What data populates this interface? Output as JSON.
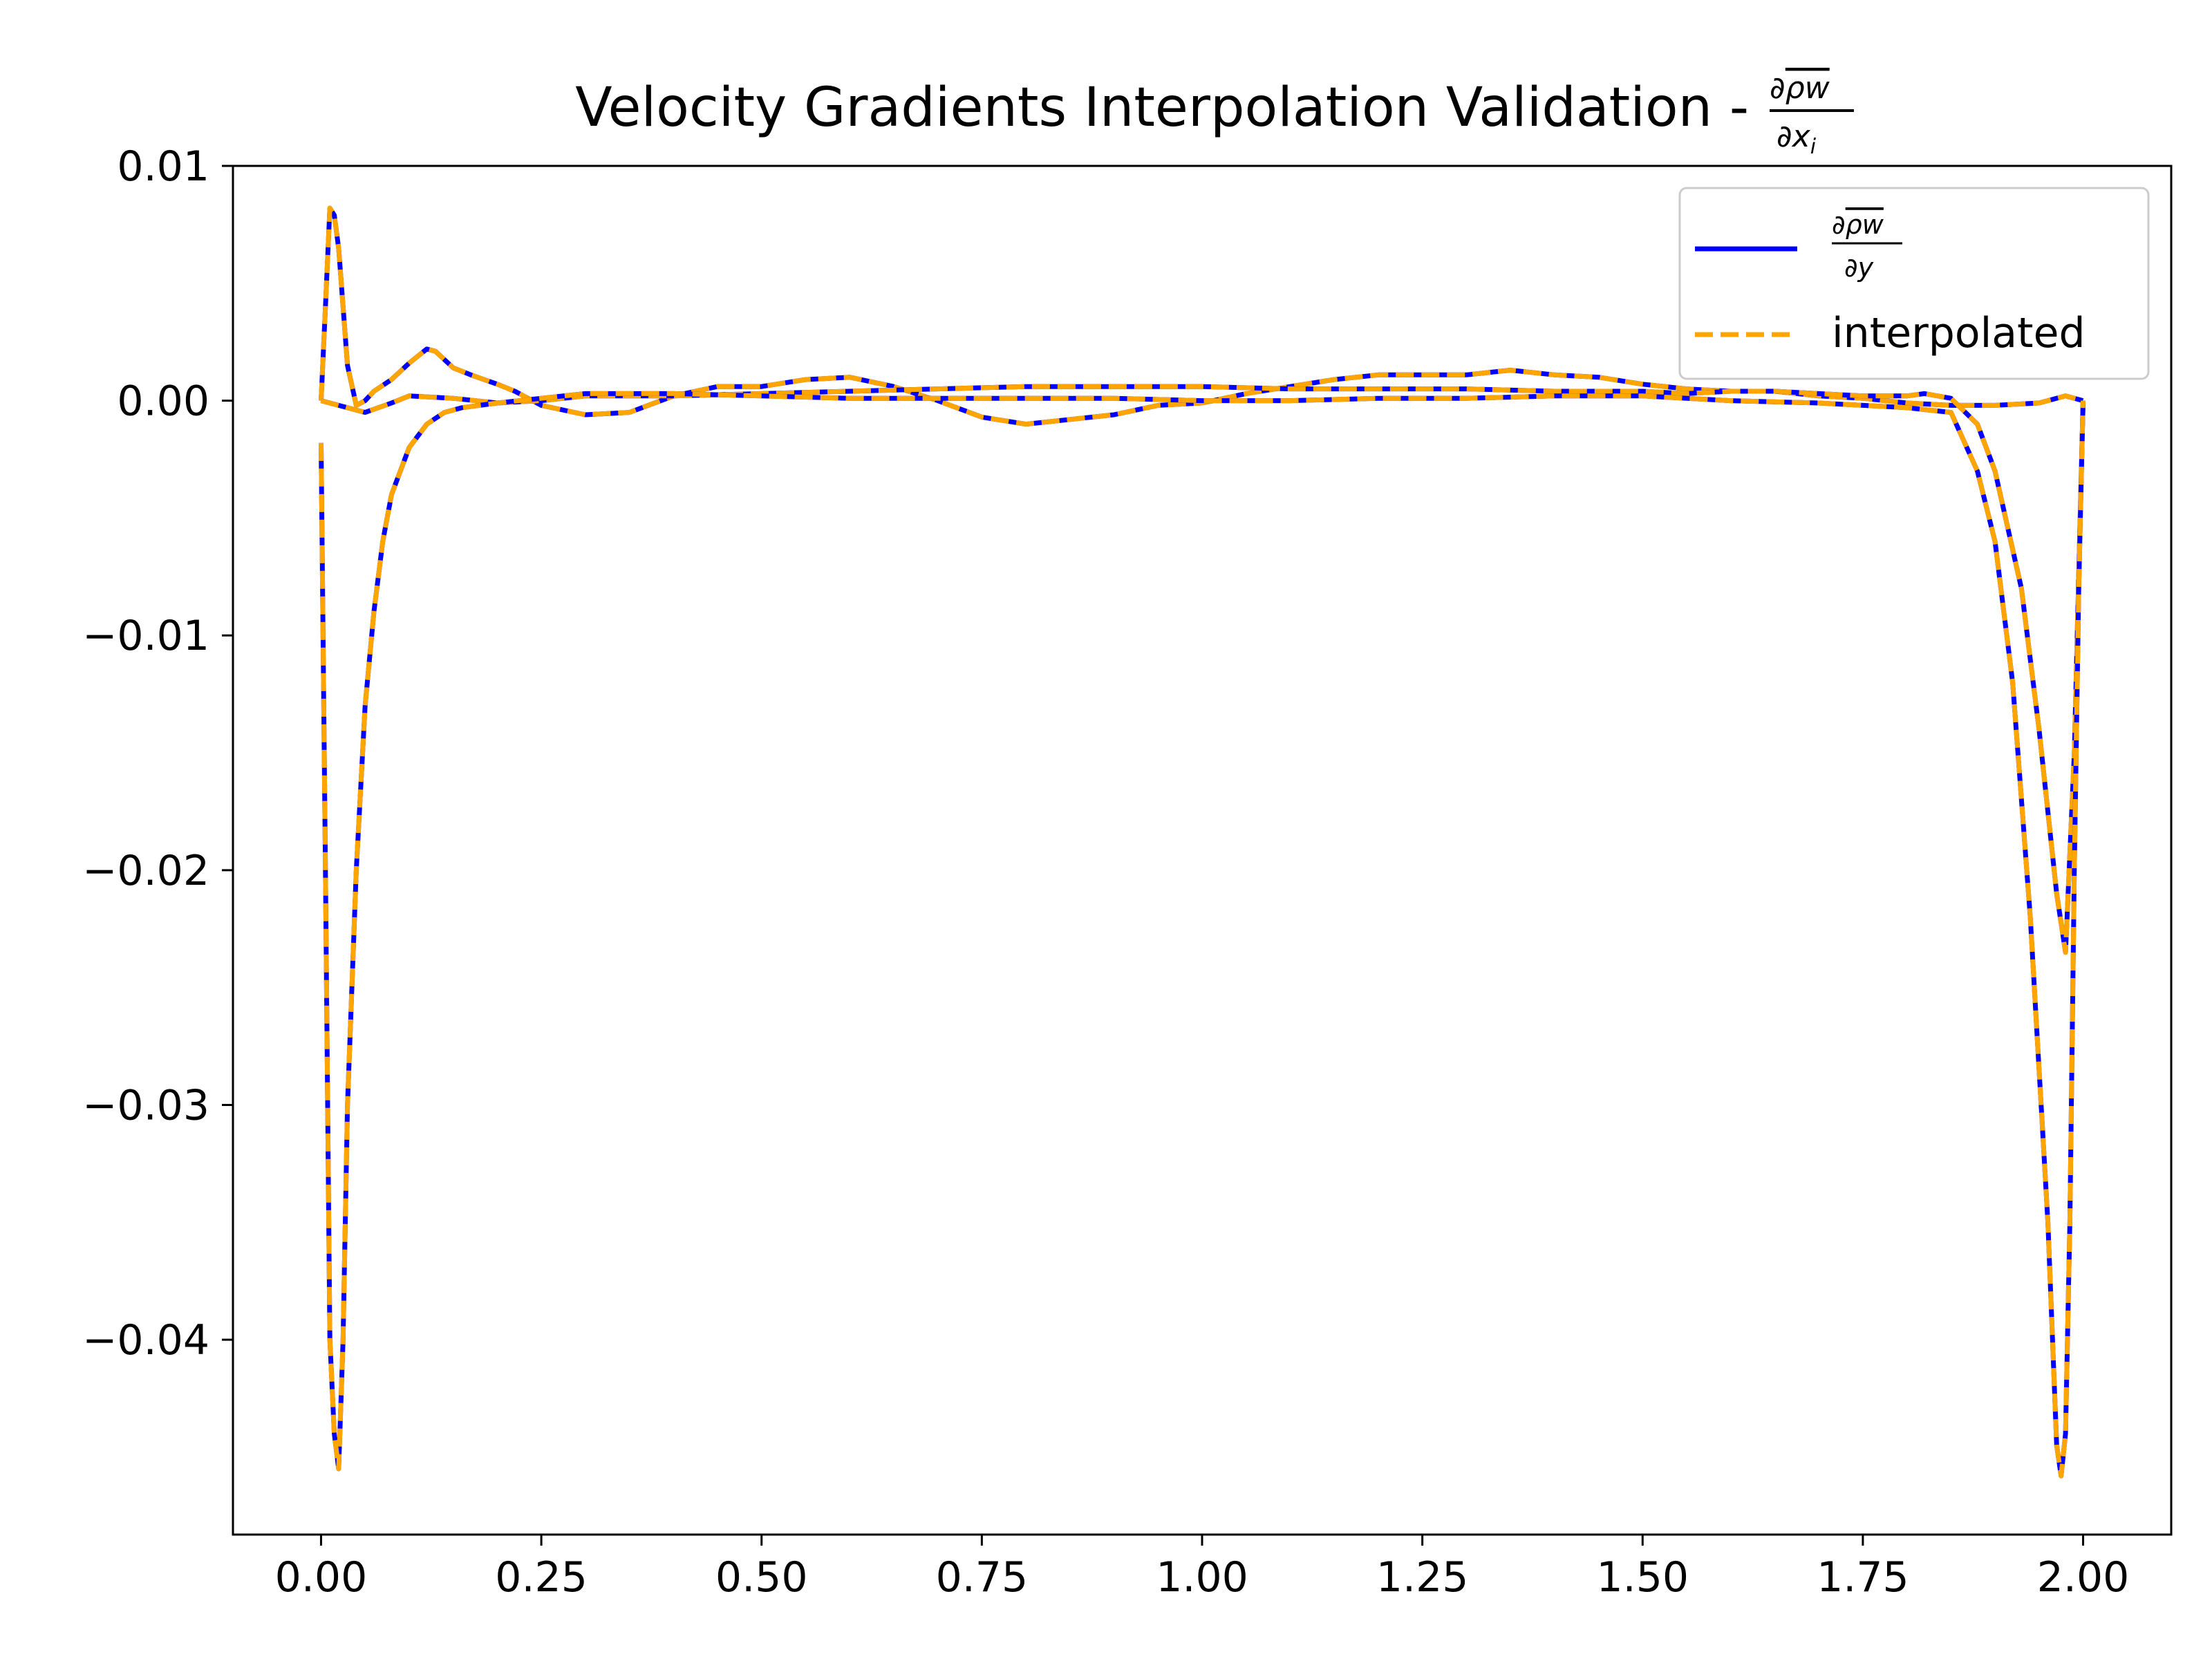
{
  "chart_data": {
    "type": "line",
    "title": {
      "text": "Velocity Gradients Interpolation Validation - ",
      "frac_num_prefix": "∂",
      "frac_num_over": "ρw",
      "frac_den": "∂x",
      "frac_den_sub": "i"
    },
    "xlabel": "",
    "ylabel": "",
    "xlim": [
      -0.1,
      2.1
    ],
    "ylim": [
      -0.0483,
      0.01
    ],
    "xticks": [
      "0.00",
      "0.25",
      "0.50",
      "0.75",
      "1.00",
      "1.25",
      "1.50",
      "1.75",
      "2.00"
    ],
    "yticks": [
      "0.01",
      "0.00",
      "−0.01",
      "−0.02",
      "−0.03",
      "−0.04"
    ],
    "grid": false,
    "legend_position": "top-right",
    "legend": [
      {
        "num_prefix": "∂",
        "num_over": "ρw",
        "den": "∂y",
        "style": "solid",
        "color": "#0000ff"
      },
      {
        "label": "interpolated",
        "style": "dashed",
        "color": "#ffa500"
      }
    ],
    "colors": {
      "truth": "#0000ff",
      "interpolated": "#ffa500"
    },
    "series": [
      {
        "x": [
          0.0,
          0.005,
          0.01,
          0.015,
          0.02,
          0.025,
          0.03,
          0.04,
          0.05,
          0.06,
          0.08,
          0.1,
          0.12,
          0.13,
          0.15,
          0.17,
          0.2,
          0.22,
          0.25,
          0.3,
          0.35,
          0.4,
          0.45,
          0.5,
          0.55,
          0.6,
          0.65,
          0.7,
          0.75,
          0.8,
          0.85,
          0.9,
          0.95,
          1.0,
          1.05,
          1.1,
          1.15,
          1.2,
          1.25,
          1.3,
          1.35,
          1.4,
          1.45,
          1.5,
          1.55,
          1.6,
          1.65,
          1.7,
          1.75,
          1.8,
          1.85,
          1.9,
          1.95,
          1.98,
          2.0
        ],
        "y": [
          0.0,
          0.004,
          0.0082,
          0.0079,
          0.0065,
          0.004,
          0.0015,
          -0.0002,
          0.0,
          0.0004,
          0.0009,
          0.0016,
          0.0022,
          0.0021,
          0.0014,
          0.0011,
          0.0007,
          0.0004,
          -0.0002,
          -0.0006,
          -0.0005,
          0.0002,
          0.0006,
          0.0006,
          0.0009,
          0.001,
          0.0006,
          0.0,
          -0.0007,
          -0.001,
          -0.0008,
          -0.0006,
          -0.0002,
          -0.0001,
          0.0003,
          0.0006,
          0.0009,
          0.0011,
          0.0011,
          0.0011,
          0.0013,
          0.0011,
          0.001,
          0.0007,
          0.0005,
          0.0004,
          0.0004,
          0.0002,
          0.0001,
          -0.0001,
          -0.0002,
          -0.0002,
          -0.0001,
          0.0002,
          0.0
        ]
      },
      {
        "x": [
          0.0,
          0.02,
          0.05,
          0.08,
          0.1,
          0.15,
          0.2,
          0.25,
          0.3,
          0.4,
          0.5,
          0.6,
          0.7,
          0.8,
          0.9,
          1.0,
          1.1,
          1.2,
          1.3,
          1.4,
          1.5,
          1.55,
          1.6,
          1.65,
          1.7,
          1.75,
          1.8,
          1.82,
          1.85,
          1.88,
          1.9,
          1.93,
          1.95,
          1.97,
          1.98,
          1.99,
          2.0
        ],
        "y": [
          0.0,
          -0.0002,
          -0.0005,
          -0.0001,
          0.0002,
          0.0001,
          -0.0001,
          0.0,
          0.0002,
          0.0002,
          0.0003,
          0.0004,
          0.0005,
          0.0006,
          0.0006,
          0.0006,
          0.0005,
          0.0005,
          0.0005,
          0.0004,
          0.0004,
          0.0003,
          0.0004,
          0.0004,
          0.0003,
          0.0002,
          0.0002,
          0.0003,
          0.0001,
          -0.001,
          -0.003,
          -0.008,
          -0.014,
          -0.021,
          -0.0235,
          -0.015,
          0.0
        ]
      },
      {
        "x": [
          0.0,
          0.005,
          0.01,
          0.015,
          0.02,
          0.025,
          0.03,
          0.04,
          0.05,
          0.06,
          0.07,
          0.08,
          0.1,
          0.12,
          0.14,
          0.16,
          0.18,
          0.2,
          0.25,
          0.3,
          0.4,
          0.5,
          0.6,
          0.7,
          0.8,
          0.9,
          1.0,
          1.1,
          1.2,
          1.3,
          1.4,
          1.5,
          1.6,
          1.7,
          1.75,
          1.8,
          1.85,
          1.88,
          1.9,
          1.92,
          1.94,
          1.96,
          1.97,
          1.975,
          1.98,
          1.985,
          1.99,
          1.995,
          2.0
        ],
        "y": [
          -0.0018,
          -0.02,
          -0.04,
          -0.044,
          -0.0455,
          -0.04,
          -0.03,
          -0.02,
          -0.013,
          -0.009,
          -0.006,
          -0.004,
          -0.002,
          -0.001,
          -0.0005,
          -0.0003,
          -0.0002,
          -0.0001,
          0.0001,
          0.0003,
          0.0003,
          0.0002,
          0.0001,
          0.0001,
          0.0001,
          0.0001,
          0.0,
          0.0,
          0.0001,
          0.0001,
          0.0002,
          0.0002,
          0.0,
          -0.0001,
          -0.0002,
          -0.0003,
          -0.0005,
          -0.003,
          -0.006,
          -0.012,
          -0.022,
          -0.035,
          -0.0445,
          -0.0458,
          -0.044,
          -0.035,
          -0.02,
          -0.008,
          0.0
        ]
      }
    ]
  }
}
